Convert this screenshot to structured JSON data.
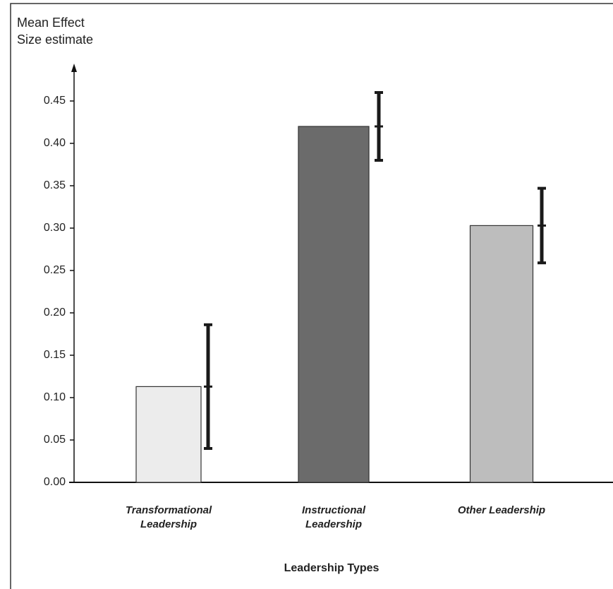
{
  "chart_data": {
    "type": "bar",
    "y_label": "Mean Effect Size estimate",
    "x_label": "Leadership Types",
    "categories": [
      "Transformational Leadership",
      "Instructional Leadership",
      "Other Leadership"
    ],
    "values": [
      0.113,
      0.42,
      0.303
    ],
    "errors": [
      0.073,
      0.04,
      0.044
    ],
    "colors": [
      "#ececec",
      "#6b6b6b",
      "#bdbdbd"
    ],
    "ylim": [
      0,
      0.49
    ],
    "yticks": [
      {
        "value": 0,
        "label": "0.00"
      },
      0.05,
      {
        "value": 0.1,
        "label": "0.10"
      },
      0.15,
      {
        "value": 0.2,
        "label": "0.20"
      },
      0.25,
      {
        "value": 0.3,
        "label": "0.30"
      },
      0.35,
      {
        "value": 0.4,
        "label": "0.40"
      },
      0.45
    ]
  }
}
